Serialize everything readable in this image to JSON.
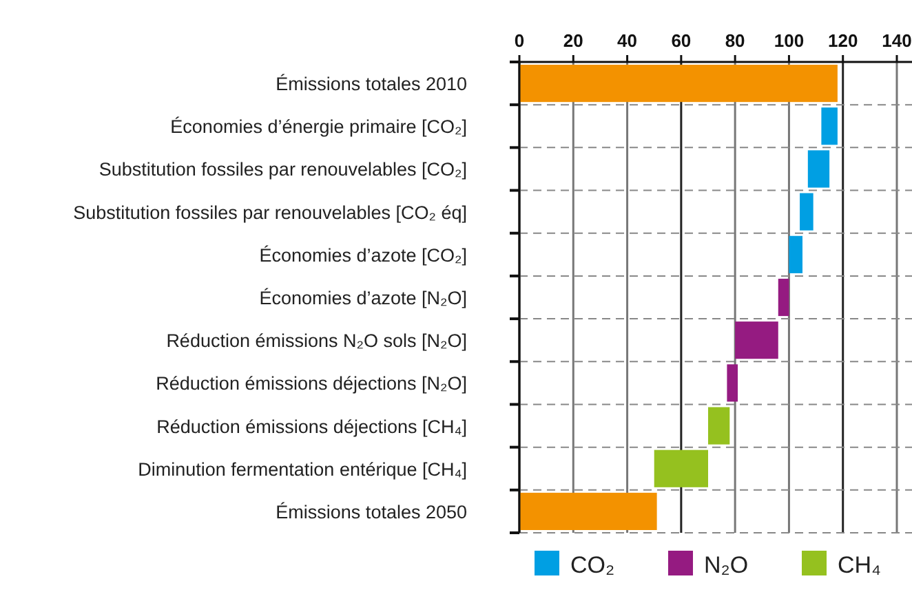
{
  "chart_data": {
    "type": "bar",
    "orientation": "horizontal",
    "categories": [
      "Émissions totales 2010",
      "Économies d’énergie primaire [CO₂]",
      "Substitution fossiles par renouvelables [CO₂]",
      "Substitution fossiles par renouvelables [CO₂ éq]",
      "Économies d’azote [CO₂]",
      "Économies d’azote [N₂O]",
      "Réduction émissions N₂O sols [N₂O]",
      "Réduction émissions déjections [N₂O]",
      "Réduction émissions déjections [CH₄]",
      "Diminution fermentation entérique [CH₄]",
      "Émissions totales 2050"
    ],
    "series": [
      {
        "color": "#f39200",
        "values": [
          118,
          null,
          null,
          null,
          null,
          null,
          null,
          null,
          null,
          null,
          51
        ],
        "base": [
          0,
          null,
          null,
          null,
          null,
          null,
          null,
          null,
          null,
          null,
          0
        ]
      },
      {
        "name": "CO₂",
        "color": "#009fe3",
        "values": [
          null,
          6,
          8,
          5,
          5,
          null,
          null,
          null,
          null,
          null,
          null
        ],
        "base": [
          null,
          112,
          107,
          104,
          100,
          null,
          null,
          null,
          null,
          null,
          null
        ]
      },
      {
        "name": "N₂O",
        "color": "#951b81",
        "values": [
          null,
          null,
          null,
          null,
          null,
          4,
          16,
          4,
          null,
          null,
          null
        ],
        "base": [
          null,
          null,
          null,
          null,
          null,
          96,
          80,
          77,
          null,
          null,
          null
        ]
      },
      {
        "name": "CH₄",
        "color": "#95c11f",
        "values": [
          null,
          null,
          null,
          null,
          null,
          null,
          null,
          null,
          8,
          20,
          null
        ],
        "base": [
          null,
          null,
          null,
          null,
          null,
          null,
          null,
          null,
          70,
          50,
          null
        ]
      }
    ],
    "xlim": [
      0,
      140
    ],
    "xticks": [
      0,
      20,
      40,
      60,
      80,
      100,
      120,
      140
    ],
    "grid": true,
    "legend": "bottom"
  }
}
